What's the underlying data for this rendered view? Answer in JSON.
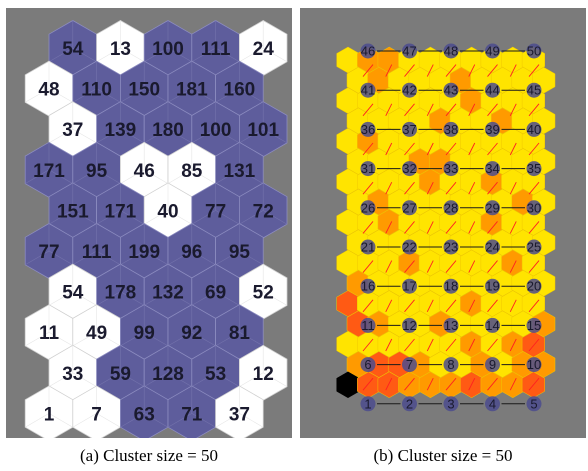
{
  "colors": {
    "background": "#7b7b7b",
    "hex_unselected": "#ffffff",
    "hex_selected": "#5e5d9c",
    "label_dark": "#1a1a2e",
    "heat_low": "#ffe400",
    "heat_mid": "#ff9a00",
    "heat_high": "#ff5a14",
    "heat_max": "#000000",
    "edge_line": "#ff2020",
    "node_fill": "#4c4c8e"
  },
  "panel_a": {
    "caption": "(a) Cluster size = 50",
    "rows": [
      {
        "offset": 1,
        "cells": [
          {
            "label": "54",
            "fill": "purple"
          },
          {
            "label": "13",
            "fill": "white"
          },
          {
            "label": "100",
            "fill": "purple"
          },
          {
            "label": "111",
            "fill": "purple"
          },
          {
            "label": "24",
            "fill": "white"
          }
        ]
      },
      {
        "offset": 0,
        "cells": [
          {
            "label": "48",
            "fill": "white"
          },
          {
            "label": "110",
            "fill": "purple"
          },
          {
            "label": "150",
            "fill": "purple"
          },
          {
            "label": "181",
            "fill": "purple"
          },
          {
            "label": "160",
            "fill": "purple"
          }
        ]
      },
      {
        "offset": 1,
        "cells": [
          {
            "label": "37",
            "fill": "white"
          },
          {
            "label": "139",
            "fill": "purple"
          },
          {
            "label": "180",
            "fill": "purple"
          },
          {
            "label": "100",
            "fill": "purple"
          },
          {
            "label": "101",
            "fill": "purple"
          }
        ]
      },
      {
        "offset": 0,
        "cells": [
          {
            "label": "171",
            "fill": "purple"
          },
          {
            "label": "95",
            "fill": "purple"
          },
          {
            "label": "46",
            "fill": "white"
          },
          {
            "label": "85",
            "fill": "white"
          },
          {
            "label": "131",
            "fill": "purple"
          }
        ]
      },
      {
        "offset": 1,
        "cells": [
          {
            "label": "151",
            "fill": "purple"
          },
          {
            "label": "171",
            "fill": "purple"
          },
          {
            "label": "40",
            "fill": "white"
          },
          {
            "label": "77",
            "fill": "purple"
          },
          {
            "label": "72",
            "fill": "purple"
          }
        ]
      },
      {
        "offset": 0,
        "cells": [
          {
            "label": "77",
            "fill": "purple"
          },
          {
            "label": "111",
            "fill": "purple"
          },
          {
            "label": "199",
            "fill": "purple"
          },
          {
            "label": "96",
            "fill": "purple"
          },
          {
            "label": "95",
            "fill": "purple"
          }
        ]
      },
      {
        "offset": 1,
        "cells": [
          {
            "label": "54",
            "fill": "white"
          },
          {
            "label": "178",
            "fill": "purple"
          },
          {
            "label": "132",
            "fill": "purple"
          },
          {
            "label": "69",
            "fill": "purple"
          },
          {
            "label": "52",
            "fill": "white"
          }
        ]
      },
      {
        "offset": 0,
        "cells": [
          {
            "label": "11",
            "fill": "white"
          },
          {
            "label": "49",
            "fill": "white"
          },
          {
            "label": "99",
            "fill": "purple"
          },
          {
            "label": "92",
            "fill": "purple"
          },
          {
            "label": "81",
            "fill": "purple"
          }
        ]
      },
      {
        "offset": 1,
        "cells": [
          {
            "label": "33",
            "fill": "white"
          },
          {
            "label": "59",
            "fill": "purple"
          },
          {
            "label": "128",
            "fill": "purple"
          },
          {
            "label": "53",
            "fill": "purple"
          },
          {
            "label": "12",
            "fill": "white"
          }
        ]
      },
      {
        "offset": 0,
        "cells": [
          {
            "label": "1",
            "fill": "white"
          },
          {
            "label": "7",
            "fill": "white"
          },
          {
            "label": "63",
            "fill": "purple"
          },
          {
            "label": "71",
            "fill": "purple"
          },
          {
            "label": "37",
            "fill": "white"
          }
        ]
      }
    ]
  },
  "panel_b": {
    "caption": "(b) Cluster size = 50",
    "node_rows": [
      [
        "46",
        "47",
        "48",
        "49",
        "50"
      ],
      [
        "41",
        "42",
        "43",
        "44",
        "45"
      ],
      [
        "36",
        "37",
        "38",
        "39",
        "40"
      ],
      [
        "31",
        "32",
        "33",
        "34",
        "35"
      ],
      [
        "26",
        "27",
        "28",
        "29",
        "30"
      ],
      [
        "21",
        "22",
        "23",
        "24",
        "25"
      ],
      [
        "16",
        "17",
        "18",
        "19",
        "20"
      ],
      [
        "11",
        "12",
        "13",
        "14",
        "15"
      ],
      [
        "6",
        "7",
        "8",
        "9",
        "10"
      ],
      [
        "1",
        "2",
        "3",
        "4",
        "5"
      ]
    ],
    "heat_rows": [
      [
        "low",
        "mid",
        "mid",
        "low",
        "low",
        "low",
        "low",
        "low",
        "low",
        "low"
      ],
      [
        "low",
        "mid",
        "low",
        "low",
        "low",
        "mid",
        "low",
        "low",
        "low",
        "low"
      ],
      [
        "low",
        "low",
        "low",
        "low",
        "low",
        "low",
        "mid",
        "low",
        "low",
        "low"
      ],
      [
        "low",
        "low",
        "low",
        "low",
        "mid",
        "low",
        "low",
        "mid",
        "low",
        "low"
      ],
      [
        "low",
        "mid",
        "low",
        "low",
        "low",
        "low",
        "low",
        "low",
        "low",
        "low"
      ],
      [
        "low",
        "low",
        "low",
        "mid",
        "mid",
        "low",
        "low",
        "low",
        "low",
        "low"
      ],
      [
        "low",
        "low",
        "low",
        "low",
        "mid",
        "low",
        "low",
        "mid",
        "low",
        "low"
      ],
      [
        "low",
        "mid",
        "low",
        "low",
        "low",
        "low",
        "low",
        "low",
        "mid",
        "low"
      ],
      [
        "low",
        "low",
        "mid",
        "low",
        "low",
        "low",
        "low",
        "mid",
        "low",
        "low"
      ],
      [
        "low",
        "low",
        "low",
        "low",
        "low",
        "low",
        "low",
        "low",
        "low",
        "low"
      ],
      [
        "low",
        "low",
        "low",
        "mid",
        "low",
        "low",
        "low",
        "low",
        "mid",
        "low"
      ],
      [
        "mid",
        "low",
        "low",
        "low",
        "low",
        "low",
        "low",
        "low",
        "low",
        "low"
      ],
      [
        "high",
        "low",
        "low",
        "low",
        "low",
        "low",
        "mid",
        "low",
        "low",
        "low"
      ],
      [
        "high",
        "mid",
        "low",
        "low",
        "mid",
        "low",
        "low",
        "low",
        "low",
        "mid"
      ],
      [
        "low",
        "low",
        "low",
        "low",
        "low",
        "low",
        "mid",
        "low",
        "mid",
        "high"
      ],
      [
        "mid",
        "high",
        "high",
        "mid",
        "low",
        "low",
        "mid",
        "low",
        "mid",
        "mid"
      ],
      [
        "max",
        "high",
        "high",
        "mid",
        "mid",
        "mid",
        "high",
        "mid",
        "mid",
        "high"
      ]
    ]
  }
}
